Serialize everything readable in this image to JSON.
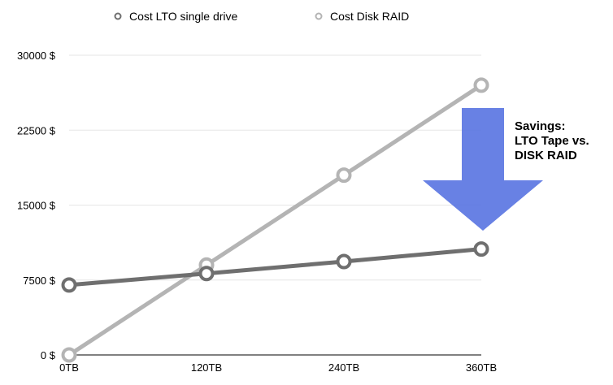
{
  "chart_data": {
    "type": "line",
    "categories": [
      "0TB",
      "120TB",
      "240TB",
      "360TB"
    ],
    "series": [
      {
        "name": "Cost LTO single drive",
        "values": [
          7000,
          8150,
          9350,
          10600
        ],
        "color": "#6f6f6f"
      },
      {
        "name": "Cost Disk RAID",
        "values": [
          0,
          9000,
          18000,
          27000
        ],
        "color": "#b4b4b4"
      }
    ],
    "y_ticks": [
      0,
      7500,
      15000,
      22500,
      30000
    ],
    "y_tick_labels": [
      "0 $",
      "7500 $",
      "15000 $",
      "22500 $",
      "30000 $"
    ],
    "ylim": [
      0,
      30000
    ],
    "grid": true,
    "legend": "top-center",
    "annotation": {
      "lines": [
        "Savings:",
        "LTO Tape vs.",
        "DISK RAID"
      ],
      "arrow_color": "#5b76e2"
    }
  }
}
